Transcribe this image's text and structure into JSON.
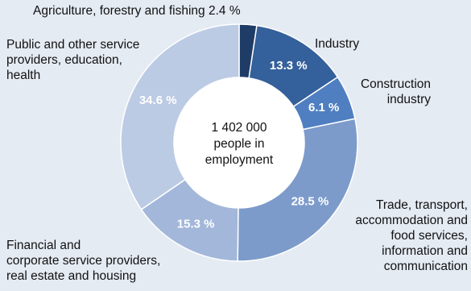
{
  "chart_data": {
    "type": "pie",
    "donut": true,
    "center_label": [
      "1 402 000",
      "people in",
      "employment"
    ],
    "slices": [
      {
        "label": "Agriculture, forestry and fishing",
        "value": 2.4,
        "display": "2.4 %",
        "color": "#1e3c66"
      },
      {
        "label": "Industry",
        "value": 13.3,
        "display": "13.3 %",
        "color": "#34609b"
      },
      {
        "label": "Construction industry",
        "value": 6.1,
        "display": "6.1 %",
        "color": "#4f7fc1"
      },
      {
        "label": "Trade, transport, accommodation and food services, information and communication",
        "value": 28.5,
        "display": "28.5 %",
        "color": "#7c9bcb"
      },
      {
        "label": "Financial and corporate service providers, real estate and housing",
        "value": 15.3,
        "display": "15.3 %",
        "color": "#a3b7da"
      },
      {
        "label": "Public and other service providers, education, health",
        "value": 34.6,
        "display": "34.6 %",
        "color": "#bccbe4"
      }
    ],
    "legend": "none"
  },
  "labels": {
    "agriculture": "Agriculture, forestry and fishing",
    "agriculture_value": "2.4 %",
    "industry": "Industry",
    "construction_line1": "Construction",
    "construction_line2": "industry",
    "trade_line1": "Trade, transport,",
    "trade_line2": "accommodation and",
    "trade_line3": "food services,",
    "trade_line4": "information and",
    "trade_line5": "communication",
    "financial_line1": "Financial and",
    "financial_line2": "corporate service providers,",
    "financial_line3": "real estate and housing",
    "public_line1": "Public and other service",
    "public_line2": "providers, education,",
    "public_line3": "health"
  },
  "colors": {
    "background": "#e5ebf3",
    "inner_hole": "#ffffff",
    "slice_border": "#ffffff",
    "value_text": "#ffffff",
    "label_text": "#111111"
  }
}
